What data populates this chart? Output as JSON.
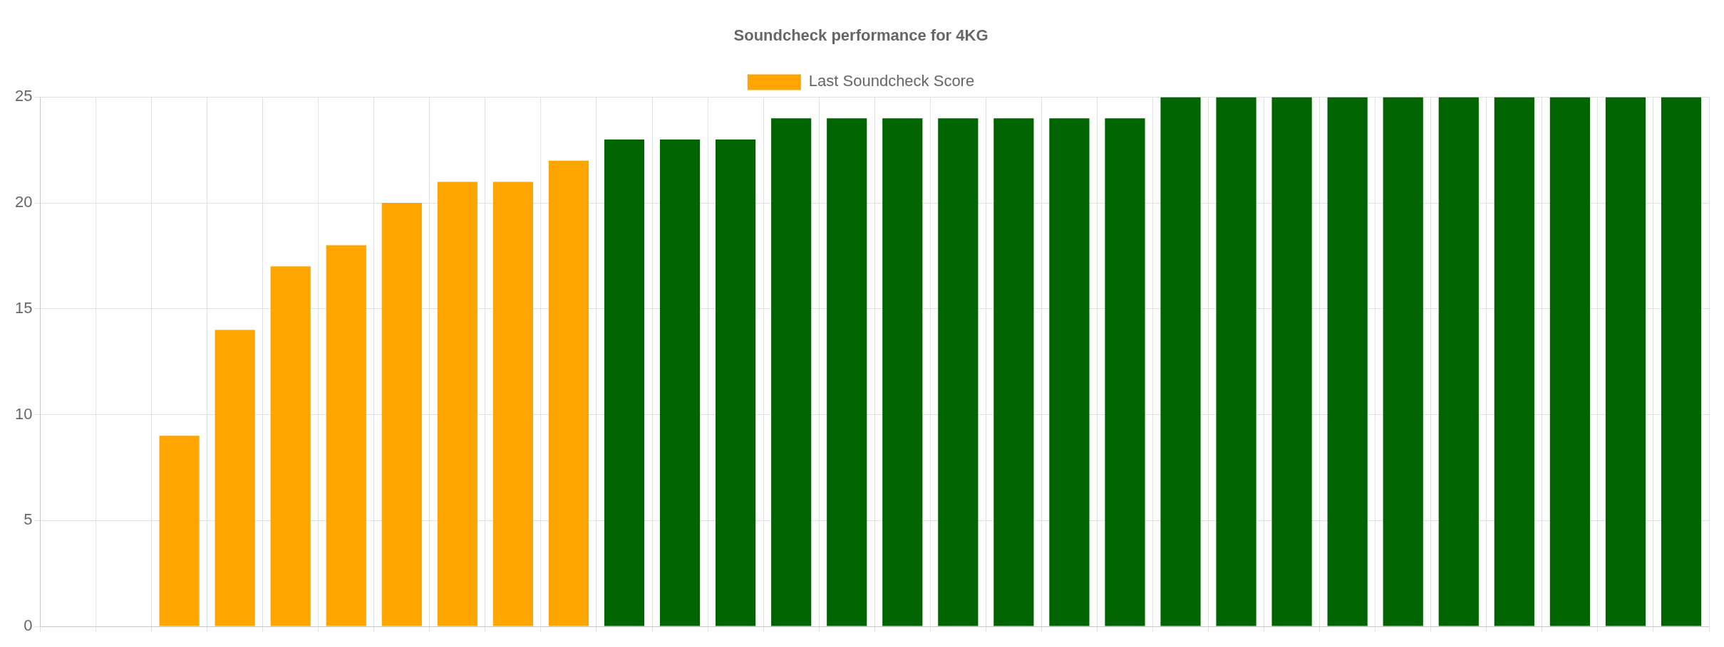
{
  "chart_data": {
    "type": "bar",
    "title": "Soundcheck performance for 4KG",
    "categories": [
      null,
      null,
      null,
      null,
      null,
      null,
      null,
      null,
      null,
      null,
      null,
      null,
      null,
      null,
      null,
      null,
      null,
      null,
      null,
      null,
      null,
      null,
      null,
      null,
      null,
      null,
      null,
      null,
      null,
      null
    ],
    "series": [
      {
        "name": "Last Soundcheck Score",
        "colors": [
          "#ffa500",
          "#ffa500",
          "#ffa500",
          "#ffa500",
          "#ffa500",
          "#ffa500",
          "#ffa500",
          "#ffa500",
          "#ffa500",
          "#ffa500",
          "#006400",
          "#006400",
          "#006400",
          "#006400",
          "#006400",
          "#006400",
          "#006400",
          "#006400",
          "#006400",
          "#006400",
          "#006400",
          "#006400",
          "#006400",
          "#006400",
          "#006400",
          "#006400",
          "#006400",
          "#006400",
          "#006400",
          "#006400"
        ],
        "values": [
          null,
          null,
          9,
          14,
          17,
          18,
          20,
          21,
          21,
          22,
          23,
          23,
          23,
          24,
          24,
          24,
          24,
          24,
          24,
          24,
          25,
          25,
          25,
          25,
          25,
          25,
          25,
          25,
          25,
          25
        ]
      }
    ],
    "ylim": [
      0,
      25
    ],
    "yticks": [
      0,
      5,
      10,
      15,
      20,
      25
    ],
    "grid": true,
    "legend": "top",
    "tick_labels": "y"
  }
}
